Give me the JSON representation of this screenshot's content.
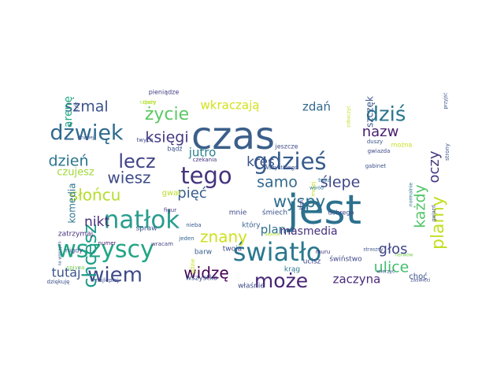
{
  "words": [
    {
      "text": "czas",
      "color": "#3b5f8a"
    },
    {
      "text": "jest",
      "color": "#2c718e"
    },
    {
      "text": "natłok",
      "color": "#2a9d8f"
    },
    {
      "text": "wszyscy",
      "color": "#21a585"
    },
    {
      "text": "światło",
      "color": "#2a788e"
    },
    {
      "text": "tego",
      "color": "#46337e"
    },
    {
      "text": "gdzieś",
      "color": "#365c8d"
    },
    {
      "text": "dźwięk",
      "color": "#306a8e"
    },
    {
      "text": "wiem",
      "color": "#3e4989"
    },
    {
      "text": "może",
      "color": "#482576"
    },
    {
      "text": "dziś",
      "color": "#2a768e"
    },
    {
      "text": "lecz",
      "color": "#414487"
    },
    {
      "text": "chcesz",
      "color": "#1f9a8a"
    },
    {
      "text": "życie",
      "color": "#5cc863"
    },
    {
      "text": "słońcu",
      "color": "#b5de2b"
    },
    {
      "text": "wyspy",
      "color": "#2e6f8e"
    },
    {
      "text": "plamy",
      "color": "#c2df23"
    },
    {
      "text": "ulice",
      "color": "#44bf70"
    },
    {
      "text": "szmal",
      "color": "#3b528b"
    },
    {
      "text": "księgi",
      "color": "#443a83"
    },
    {
      "text": "wiesz",
      "color": "#3e4c8a"
    },
    {
      "text": "dzień",
      "color": "#2b758e"
    },
    {
      "text": "znany",
      "color": "#cde11d"
    },
    {
      "text": "widzę",
      "color": "#440154"
    },
    {
      "text": "samo",
      "color": "#31688e"
    },
    {
      "text": "ślepe",
      "color": "#3f4788"
    },
    {
      "text": "kres",
      "color": "#3b528b"
    },
    {
      "text": "głos",
      "color": "#404588"
    },
    {
      "text": "nazw",
      "color": "#481f70"
    },
    {
      "text": "każdy",
      "color": "#54c568"
    },
    {
      "text": "oczy",
      "color": "#453882"
    },
    {
      "text": "pięć",
      "color": "#375a8c"
    },
    {
      "text": "jutro",
      "color": "#277f8e"
    },
    {
      "text": "nikt",
      "color": "#472d7b"
    },
    {
      "text": "tutaj",
      "color": "#3b528b"
    },
    {
      "text": "plan",
      "color": "#2d708e"
    },
    {
      "text": "masmedia",
      "color": "#46307e"
    },
    {
      "text": "zaczyna",
      "color": "#482979"
    },
    {
      "text": "wkraczają",
      "color": "#d2e21b"
    },
    {
      "text": "zdań",
      "color": "#31678e"
    },
    {
      "text": "arenę",
      "color": "#22a884"
    },
    {
      "text": "szczęk",
      "color": "#3a548c"
    },
    {
      "text": "komedia",
      "color": "#2c738e"
    },
    {
      "text": "czujesz",
      "color": "#a0da39"
    },
    {
      "text": "zatrzymaj",
      "color": "#472e7c"
    },
    {
      "text": "spraw",
      "color": "#3a548c"
    },
    {
      "text": "nigdy",
      "color": "#3d4d8a"
    },
    {
      "text": "numer",
      "color": "#482173"
    },
    {
      "text": "wracam",
      "color": "#414487"
    },
    {
      "text": "gwar",
      "color": "#bade28"
    },
    {
      "text": "mnie",
      "color": "#3e4a89"
    },
    {
      "text": "śmiech",
      "color": "#3b528b"
    },
    {
      "text": "który",
      "color": "#355f8d"
    },
    {
      "text": "twoja",
      "color": "#3f4889"
    },
    {
      "text": "barw",
      "color": "#355e8d"
    },
    {
      "text": "wszystko",
      "color": "#3b528b"
    },
    {
      "text": "właśnie",
      "color": "#3e4a89"
    },
    {
      "text": "ucisz",
      "color": "#3f4788"
    },
    {
      "text": "krąg",
      "color": "#2a788e"
    },
    {
      "text": "świństwo",
      "color": "#3f4889"
    },
    {
      "text": "choć",
      "color": "#3b528b"
    },
    {
      "text": "dobrego",
      "color": "#3e4a89"
    },
    {
      "text": "muru",
      "color": "#46327e"
    },
    {
      "text": "gabinet",
      "color": "#3b528b"
    },
    {
      "text": "gwiazda",
      "color": "#3e4989"
    },
    {
      "text": "można",
      "color": "#c8e020"
    },
    {
      "text": "duszy",
      "color": "#3a548c"
    },
    {
      "text": "pieniądze",
      "color": "#433d84"
    },
    {
      "text": "twych",
      "color": "#3e4989"
    },
    {
      "text": "bądź",
      "color": "#3b528b"
    },
    {
      "text": "jeszcze",
      "color": "#3e4c8a"
    },
    {
      "text": "wszystkiego",
      "color": "#3b528b"
    },
    {
      "text": "czekania",
      "color": "#46337e"
    },
    {
      "text": "figur",
      "color": "#443983"
    },
    {
      "text": "nieba",
      "color": "#38598c"
    },
    {
      "text": "jeden",
      "color": "#33638d"
    },
    {
      "text": "dziękuję",
      "color": "#3b528b"
    },
    {
      "text": "najlepiej",
      "color": "#3e4c8a"
    },
    {
      "text": "duży",
      "color": "#c2df23"
    },
    {
      "text": "czynny",
      "color": "#a8db34"
    },
    {
      "text": "drugiej",
      "color": "#3b528b"
    },
    {
      "text": "spiyna",
      "color": "#73d056"
    },
    {
      "text": "tyle",
      "color": "#3b528b"
    },
    {
      "text": "słońce",
      "color": "#b8de29"
    },
    {
      "text": "straszny",
      "color": "#3b528b"
    },
    {
      "text": "nerwów",
      "color": "#7ad151"
    },
    {
      "text": "wierzyć",
      "color": "#3b528b"
    },
    {
      "text": "zaświeci",
      "color": "#3e4a89"
    },
    {
      "text": "strony",
      "color": "#3a548c"
    },
    {
      "text": "normalnie",
      "color": "#2c718e"
    },
    {
      "text": "przyjść",
      "color": "#3b528b"
    },
    {
      "text": "zobaczyć",
      "color": "#bddf26"
    },
    {
      "text": "gwiazd",
      "color": "#3e4989"
    },
    {
      "text": "ktoś",
      "color": "#46327e"
    },
    {
      "text": "gdzie",
      "color": "#c5e021"
    },
    {
      "text": "mojej",
      "color": "#c2df23"
    },
    {
      "text": "trwa",
      "color": "#2c728e"
    },
    {
      "text": "wśród",
      "color": "#2a788e"
    },
    {
      "text": "na własnych",
      "color": "#3b528b"
    }
  ]
}
